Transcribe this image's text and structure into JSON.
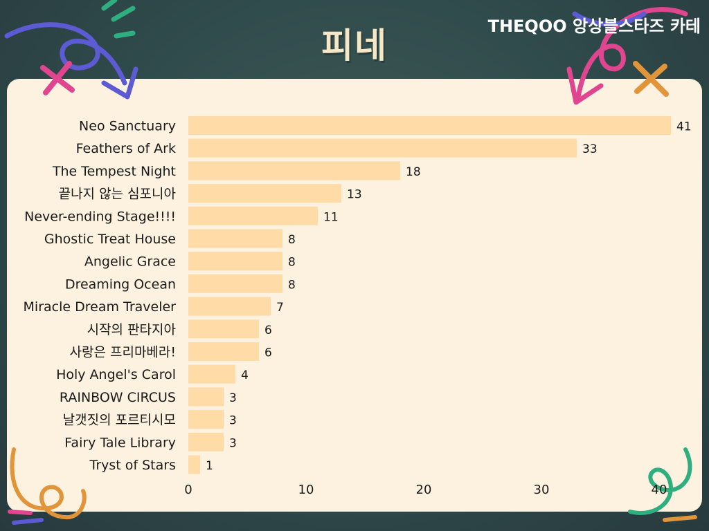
{
  "header": {
    "title": "피네",
    "source_label": "THEQOO 앙상블스타즈 카테"
  },
  "colors": {
    "background": "#2f4a4a",
    "panel": "#fdf1df",
    "bar": "#ffdba8",
    "title": "#f6e7c6"
  },
  "chart_data": {
    "type": "bar",
    "orientation": "horizontal",
    "title": "피네",
    "xlabel": "",
    "ylabel": "",
    "xlim": [
      0,
      41
    ],
    "xticks": [
      0,
      10,
      20,
      30,
      40
    ],
    "grid": false,
    "legend": "none",
    "categories": [
      "Neo Sanctuary",
      "Feathers of Ark",
      "The Tempest Night",
      "끝나지 않는 심포니아",
      "Never-ending Stage!!!!",
      "Ghostic Treat House",
      "Angelic Grace",
      "Dreaming Ocean",
      "Miracle Dream Traveler",
      "시작의 판타지아",
      "사랑은 프리마베라!",
      "Holy Angel's Carol",
      "RAINBOW CIRCUS",
      "날갯짓의 포르티시모",
      "Fairy Tale Library",
      "Tryst of Stars"
    ],
    "values": [
      41,
      33,
      18,
      13,
      11,
      8,
      8,
      8,
      7,
      6,
      6,
      4,
      3,
      3,
      3,
      1
    ]
  }
}
